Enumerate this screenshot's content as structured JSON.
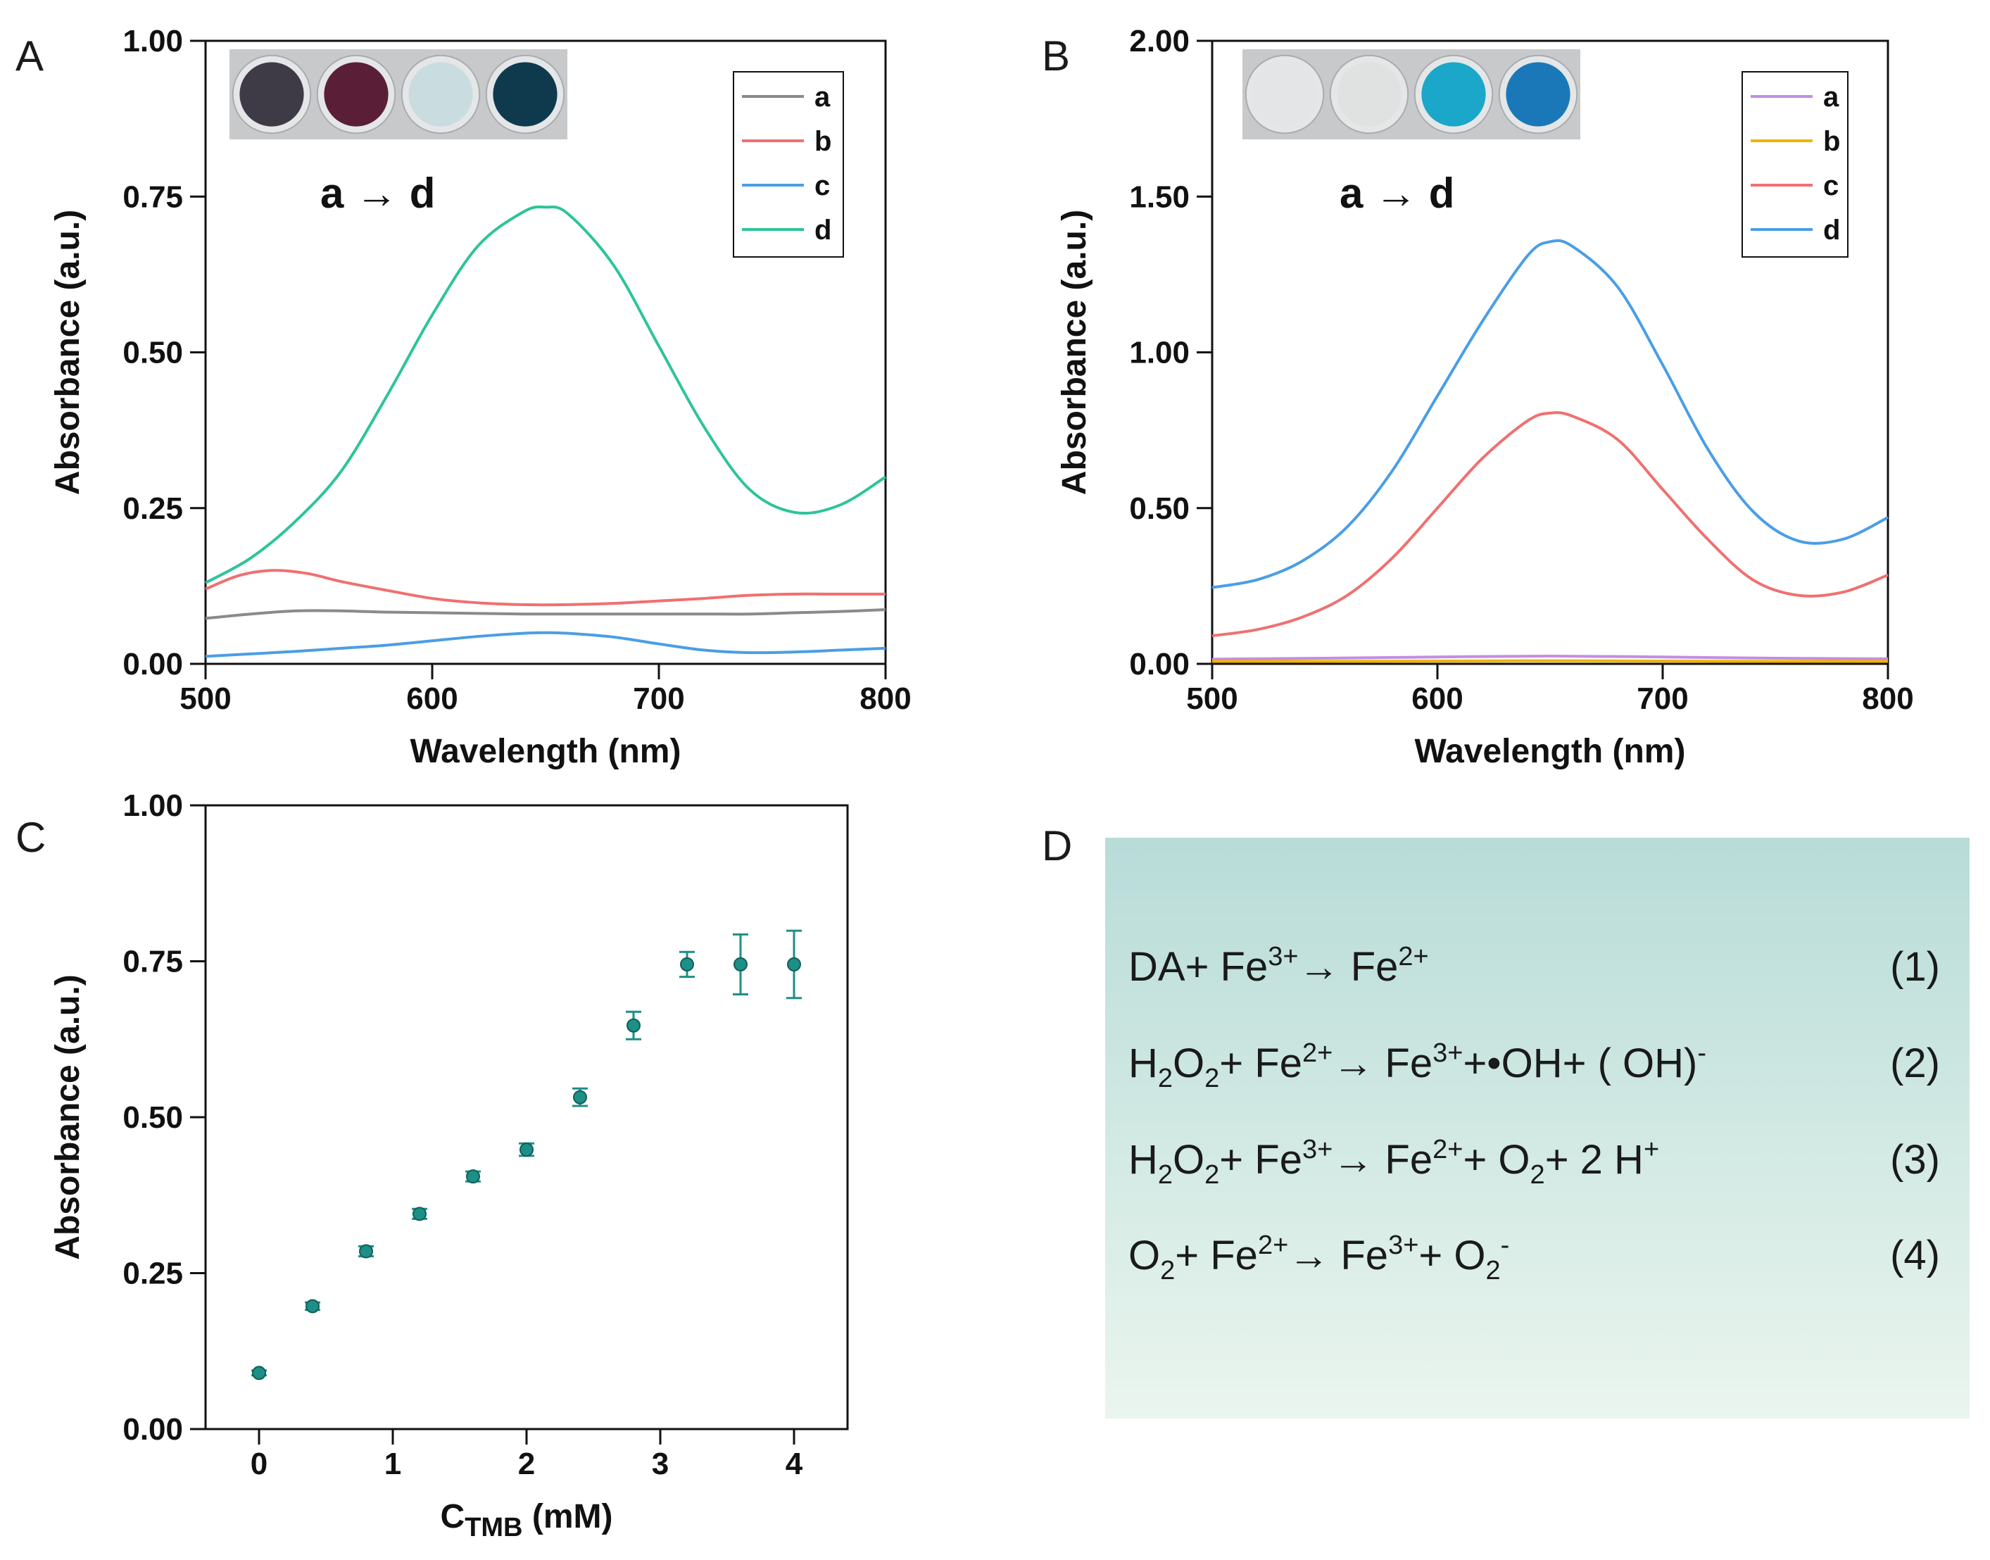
{
  "panels": {
    "A": "A",
    "B": "B",
    "C": "C",
    "D": "D"
  },
  "chart_data": [
    {
      "id": "A",
      "type": "line",
      "xlabel": "Wavelength (nm)",
      "ylabel": "Absorbance (a.u.)",
      "xlim": [
        500,
        800
      ],
      "ylim": [
        0,
        1.0
      ],
      "xticks": [
        500,
        600,
        700,
        800
      ],
      "yticks": [
        0.0,
        0.25,
        0.5,
        0.75,
        1.0
      ],
      "ytick_labels": [
        "0.00",
        "0.25",
        "0.50",
        "0.75",
        "1.00"
      ],
      "annotation": "a → d",
      "inset": {
        "wells": [
          "#3e3b47",
          "#5a1f37",
          "#c9dde0",
          "#0f3a4e"
        ]
      },
      "legend": [
        "a",
        "b",
        "c",
        "d"
      ],
      "series": [
        {
          "name": "a",
          "color": "#8a8a8a",
          "x": [
            500,
            520,
            540,
            560,
            580,
            600,
            620,
            640,
            660,
            680,
            700,
            720,
            740,
            760,
            780,
            800
          ],
          "y": [
            0.073,
            0.08,
            0.085,
            0.085,
            0.083,
            0.082,
            0.081,
            0.08,
            0.08,
            0.08,
            0.08,
            0.08,
            0.08,
            0.082,
            0.084,
            0.087
          ]
        },
        {
          "name": "b",
          "color": "#f07070",
          "x": [
            500,
            515,
            530,
            545,
            560,
            580,
            600,
            620,
            640,
            660,
            680,
            700,
            720,
            740,
            760,
            780,
            800
          ],
          "y": [
            0.12,
            0.142,
            0.15,
            0.145,
            0.132,
            0.118,
            0.105,
            0.098,
            0.095,
            0.095,
            0.097,
            0.101,
            0.105,
            0.11,
            0.112,
            0.112,
            0.112
          ]
        },
        {
          "name": "c",
          "color": "#4a9ee6",
          "x": [
            500,
            520,
            540,
            560,
            580,
            600,
            620,
            640,
            650,
            660,
            680,
            700,
            720,
            740,
            760,
            780,
            800
          ],
          "y": [
            0.012,
            0.016,
            0.02,
            0.025,
            0.03,
            0.037,
            0.044,
            0.049,
            0.05,
            0.049,
            0.043,
            0.032,
            0.022,
            0.018,
            0.019,
            0.022,
            0.025
          ]
        },
        {
          "name": "d",
          "color": "#2ec49a",
          "x": [
            500,
            520,
            540,
            560,
            580,
            600,
            620,
            640,
            650,
            660,
            680,
            700,
            720,
            740,
            760,
            780,
            800
          ],
          "y": [
            0.13,
            0.17,
            0.23,
            0.31,
            0.43,
            0.56,
            0.67,
            0.725,
            0.733,
            0.722,
            0.64,
            0.51,
            0.38,
            0.28,
            0.243,
            0.255,
            0.3
          ]
        }
      ]
    },
    {
      "id": "B",
      "type": "line",
      "xlabel": "Wavelength (nm)",
      "ylabel": "Absorbance (a.u.)",
      "xlim": [
        500,
        800
      ],
      "ylim": [
        0,
        2.0
      ],
      "xticks": [
        500,
        600,
        700,
        800
      ],
      "yticks": [
        0.0,
        0.5,
        1.0,
        1.5,
        2.0
      ],
      "ytick_labels": [
        "0.00",
        "0.50",
        "1.00",
        "1.50",
        "2.00"
      ],
      "annotation": "a → d",
      "inset": {
        "wells": [
          "#e3e5e6",
          "#e0e2e2",
          "#1aa7c9",
          "#1a78b8"
        ]
      },
      "legend": [
        "a",
        "b",
        "c",
        "d"
      ],
      "series": [
        {
          "name": "a",
          "color": "#c38ee0",
          "x": [
            500,
            550,
            600,
            650,
            700,
            750,
            800
          ],
          "y": [
            0.015,
            0.018,
            0.022,
            0.025,
            0.022,
            0.018,
            0.016
          ]
        },
        {
          "name": "b",
          "color": "#f0b400",
          "x": [
            500,
            550,
            600,
            650,
            700,
            750,
            800
          ],
          "y": [
            0.008,
            0.008,
            0.009,
            0.01,
            0.009,
            0.008,
            0.008
          ]
        },
        {
          "name": "c",
          "color": "#f07070",
          "x": [
            500,
            520,
            540,
            560,
            580,
            600,
            620,
            640,
            650,
            660,
            680,
            700,
            720,
            740,
            760,
            780,
            800
          ],
          "y": [
            0.09,
            0.11,
            0.15,
            0.22,
            0.34,
            0.5,
            0.66,
            0.78,
            0.805,
            0.795,
            0.72,
            0.56,
            0.4,
            0.27,
            0.22,
            0.23,
            0.285
          ]
        },
        {
          "name": "d",
          "color": "#4a9ee6",
          "x": [
            500,
            520,
            540,
            560,
            580,
            600,
            620,
            640,
            650,
            660,
            680,
            700,
            720,
            740,
            760,
            780,
            800
          ],
          "y": [
            0.245,
            0.27,
            0.33,
            0.44,
            0.62,
            0.86,
            1.1,
            1.31,
            1.355,
            1.34,
            1.21,
            0.96,
            0.69,
            0.49,
            0.395,
            0.4,
            0.47
          ]
        }
      ]
    },
    {
      "id": "C",
      "type": "scatter",
      "xlabel_main": "C",
      "xlabel_sub": "TMB",
      "xlabel_tail": " (mM)",
      "ylabel": "Absorbance (a.u.)",
      "xlim": [
        -0.4,
        4.4
      ],
      "ylim": [
        0,
        1.0
      ],
      "xticks": [
        0,
        1,
        2,
        3,
        4
      ],
      "yticks": [
        0.0,
        0.25,
        0.5,
        0.75,
        1.0
      ],
      "ytick_labels": [
        "0.00",
        "0.25",
        "0.50",
        "0.75",
        "1.00"
      ],
      "color": "#1e8f86",
      "x": [
        0,
        0.4,
        0.8,
        1.2,
        1.6,
        2.0,
        2.4,
        2.8,
        3.2,
        3.6,
        4.0
      ],
      "y": [
        0.09,
        0.197,
        0.285,
        0.345,
        0.405,
        0.448,
        0.532,
        0.647,
        0.745,
        0.745,
        0.745
      ],
      "err": [
        0.004,
        0.006,
        0.008,
        0.008,
        0.008,
        0.01,
        0.014,
        0.022,
        0.02,
        0.048,
        0.054
      ]
    }
  ],
  "equations": [
    {
      "parts": [
        [
          "DA+ Fe",
          ""
        ],
        [
          "3+",
          "sup"
        ],
        [
          "→ Fe",
          ""
        ],
        [
          "2+",
          "sup"
        ]
      ],
      "num": "(1)"
    },
    {
      "parts": [
        [
          "H",
          ""
        ],
        [
          "2",
          "sub"
        ],
        [
          "O",
          ""
        ],
        [
          "2",
          "sub"
        ],
        [
          "+ Fe",
          ""
        ],
        [
          "2+",
          "sup"
        ],
        [
          "→ Fe",
          ""
        ],
        [
          "3+",
          "sup"
        ],
        [
          "+•OH+ ( OH)",
          ""
        ],
        [
          "-",
          "sup"
        ]
      ],
      "num": "(2)"
    },
    {
      "parts": [
        [
          "H",
          ""
        ],
        [
          "2",
          "sub"
        ],
        [
          "O",
          ""
        ],
        [
          "2",
          "sub"
        ],
        [
          "+ Fe",
          ""
        ],
        [
          "3+",
          "sup"
        ],
        [
          "→ Fe",
          ""
        ],
        [
          "2+",
          "sup"
        ],
        [
          "+ O",
          ""
        ],
        [
          "2",
          "sub"
        ],
        [
          "+ 2 H",
          ""
        ],
        [
          "+",
          "sup"
        ]
      ],
      "num": "(3)"
    },
    {
      "parts": [
        [
          "O",
          ""
        ],
        [
          "2",
          "sub"
        ],
        [
          "+ Fe",
          ""
        ],
        [
          "2+",
          "sup"
        ],
        [
          "→ Fe",
          ""
        ],
        [
          "3+",
          "sup"
        ],
        [
          "+ O",
          ""
        ],
        [
          "2",
          "sub"
        ],
        [
          "-",
          "sup"
        ]
      ],
      "num": "(4)"
    }
  ],
  "colors": {
    "eq_bg_top": "#b8dcd8",
    "eq_bg_bottom": "#eaf5ee"
  }
}
